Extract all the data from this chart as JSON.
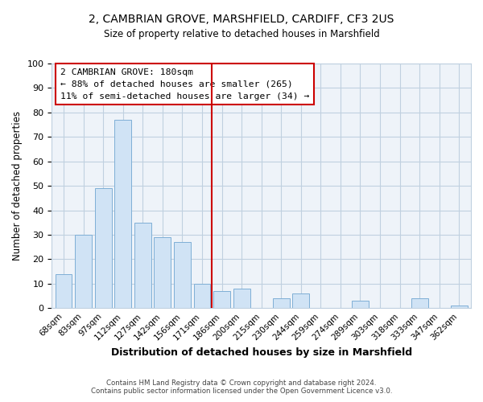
{
  "title": "2, CAMBRIAN GROVE, MARSHFIELD, CARDIFF, CF3 2US",
  "subtitle": "Size of property relative to detached houses in Marshfield",
  "xlabel": "Distribution of detached houses by size in Marshfield",
  "ylabel": "Number of detached properties",
  "bar_labels": [
    "68sqm",
    "83sqm",
    "97sqm",
    "112sqm",
    "127sqm",
    "142sqm",
    "156sqm",
    "171sqm",
    "186sqm",
    "200sqm",
    "215sqm",
    "230sqm",
    "244sqm",
    "259sqm",
    "274sqm",
    "289sqm",
    "303sqm",
    "318sqm",
    "333sqm",
    "347sqm",
    "362sqm"
  ],
  "bar_values": [
    14,
    30,
    49,
    77,
    35,
    29,
    27,
    10,
    7,
    8,
    0,
    4,
    6,
    0,
    0,
    3,
    0,
    0,
    4,
    0,
    1
  ],
  "bar_color": "#d0e3f5",
  "bar_edge_color": "#7fafd6",
  "vline_x": 7.5,
  "vline_color": "#cc0000",
  "ylim": [
    0,
    100
  ],
  "annotation_title": "2 CAMBRIAN GROVE: 180sqm",
  "annotation_line1": "← 88% of detached houses are smaller (265)",
  "annotation_line2": "11% of semi-detached houses are larger (34) →",
  "annotation_box_color": "#ffffff",
  "annotation_box_edge": "#cc0000",
  "footer_line1": "Contains HM Land Registry data © Crown copyright and database right 2024.",
  "footer_line2": "Contains public sector information licensed under the Open Government Licence v3.0.",
  "background_color": "#ffffff",
  "plot_bg_color": "#eef3f9",
  "grid_color": "#c0d0e0"
}
